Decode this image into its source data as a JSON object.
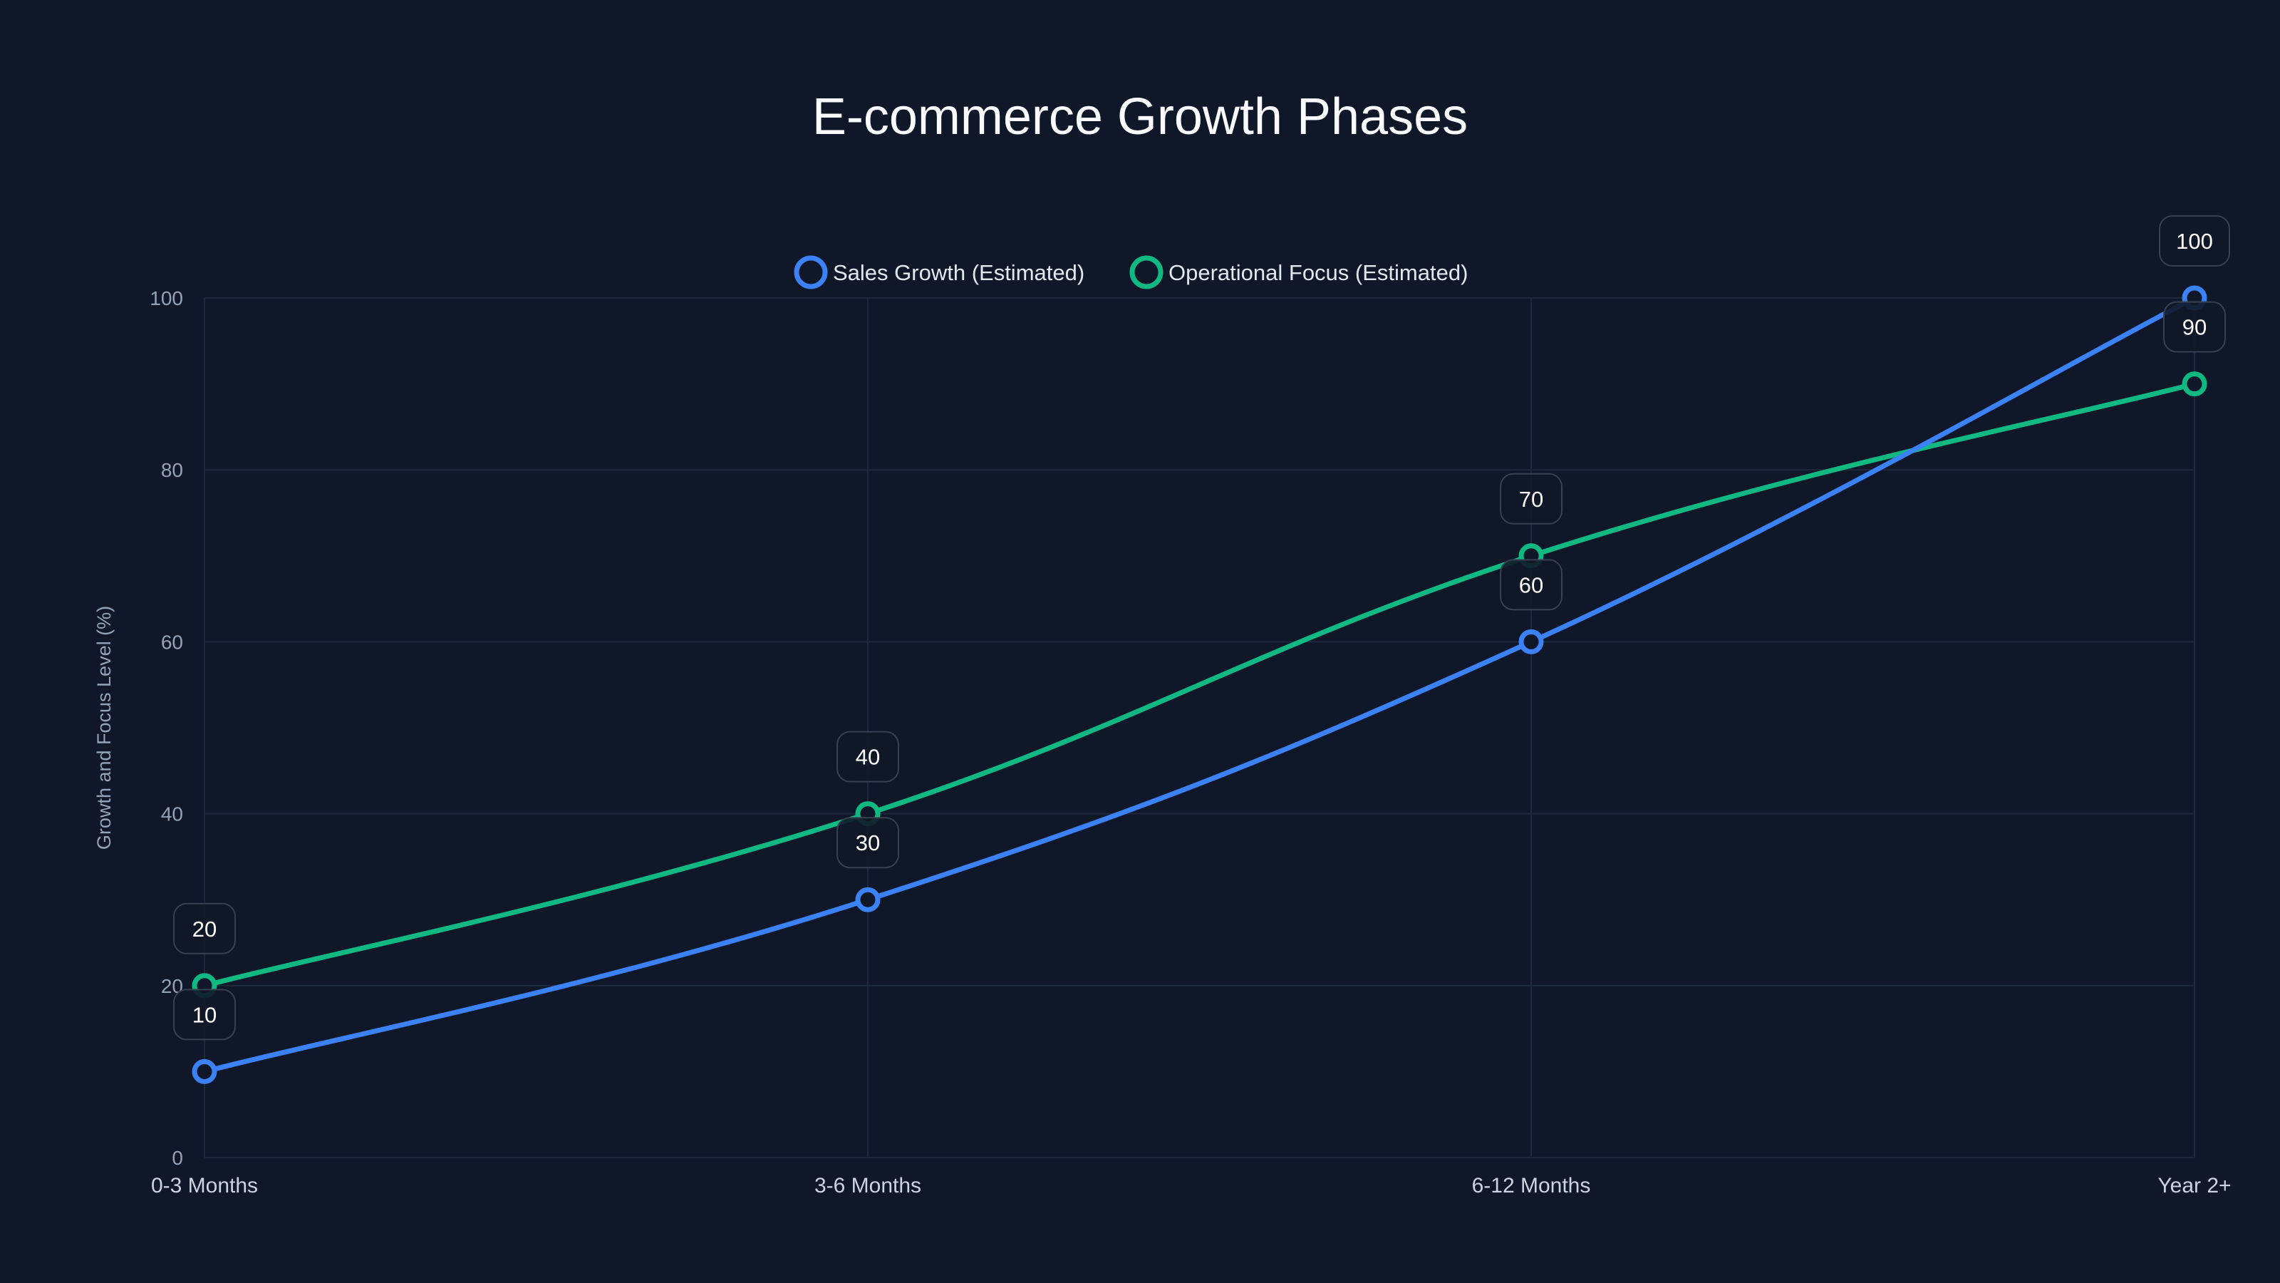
{
  "chart_data": {
    "type": "line",
    "title": "E-commerce Growth Phases",
    "xlabel": "",
    "ylabel": "Growth and Focus Level (%)",
    "categories": [
      "0-3 Months",
      "3-6 Months",
      "6-12 Months",
      "Year 2+"
    ],
    "ylim": [
      0,
      100
    ],
    "yticks": [
      0,
      20,
      40,
      60,
      80,
      100
    ],
    "grid": true,
    "legend_position": "top",
    "series": [
      {
        "name": "Sales Growth (Estimated)",
        "color": "#3b82f6",
        "values": [
          10,
          30,
          60,
          100
        ]
      },
      {
        "name": "Operational Focus (Estimated)",
        "color": "#10b981",
        "values": [
          20,
          40,
          70,
          90
        ]
      }
    ]
  },
  "colors": {
    "background": "#0f1729",
    "grid": "#1e293b",
    "text": "#f8fafc",
    "axis_text": "#94a3b8"
  }
}
